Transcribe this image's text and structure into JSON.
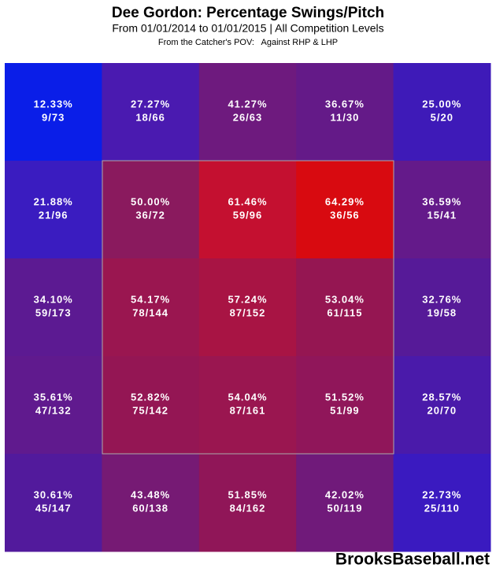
{
  "chart_data": {
    "type": "heatmap",
    "title": "Dee Gordon: Percentage Swings/Pitch",
    "subtitle": "From 01/01/2014 to 01/01/2015 | All Competition Levels",
    "note": "From the Catcher's POV:   Against RHP & LHP",
    "watermark": "BrooksBaseball.net",
    "values": [
      [
        12.33,
        27.27,
        41.27,
        36.67,
        25.0
      ],
      [
        21.88,
        50.0,
        61.46,
        64.29,
        36.59
      ],
      [
        34.1,
        54.17,
        57.24,
        53.04,
        32.76
      ],
      [
        35.61,
        52.82,
        54.04,
        51.52,
        28.57
      ],
      [
        30.61,
        43.48,
        51.85,
        42.02,
        22.73
      ]
    ],
    "value_labels": [
      [
        "12.33%",
        "27.27%",
        "41.27%",
        "36.67%",
        "25.00%"
      ],
      [
        "21.88%",
        "50.00%",
        "61.46%",
        "64.29%",
        "36.59%"
      ],
      [
        "34.10%",
        "54.17%",
        "57.24%",
        "53.04%",
        "32.76%"
      ],
      [
        "35.61%",
        "52.82%",
        "54.04%",
        "51.52%",
        "28.57%"
      ],
      [
        "30.61%",
        "43.48%",
        "51.85%",
        "42.02%",
        "22.73%"
      ]
    ],
    "counts": [
      [
        "9/73",
        "18/66",
        "26/63",
        "11/30",
        "5/20"
      ],
      [
        "21/96",
        "36/72",
        "59/96",
        "36/56",
        "15/41"
      ],
      [
        "59/173",
        "78/144",
        "87/152",
        "61/115",
        "19/58"
      ],
      [
        "47/132",
        "75/142",
        "87/161",
        "51/99",
        "20/70"
      ],
      [
        "45/147",
        "60/138",
        "84/162",
        "50/119",
        "25/110"
      ]
    ],
    "colors": [
      [
        "#0a1ee8",
        "#4a1ab0",
        "#6e1a7e",
        "#641a88",
        "#3e1ab8"
      ],
      [
        "#3a1cc0",
        "#8a1a5e",
        "#c41030",
        "#d80a10",
        "#641a8a"
      ],
      [
        "#5c1a92",
        "#9a1650",
        "#a81444",
        "#951652",
        "#561a98"
      ],
      [
        "#601a8e",
        "#941654",
        "#9a1650",
        "#90165a",
        "#4a1aaa"
      ],
      [
        "#521a9c",
        "#761a74",
        "#901658",
        "#701a7a",
        "#3a1ac0"
      ]
    ]
  }
}
